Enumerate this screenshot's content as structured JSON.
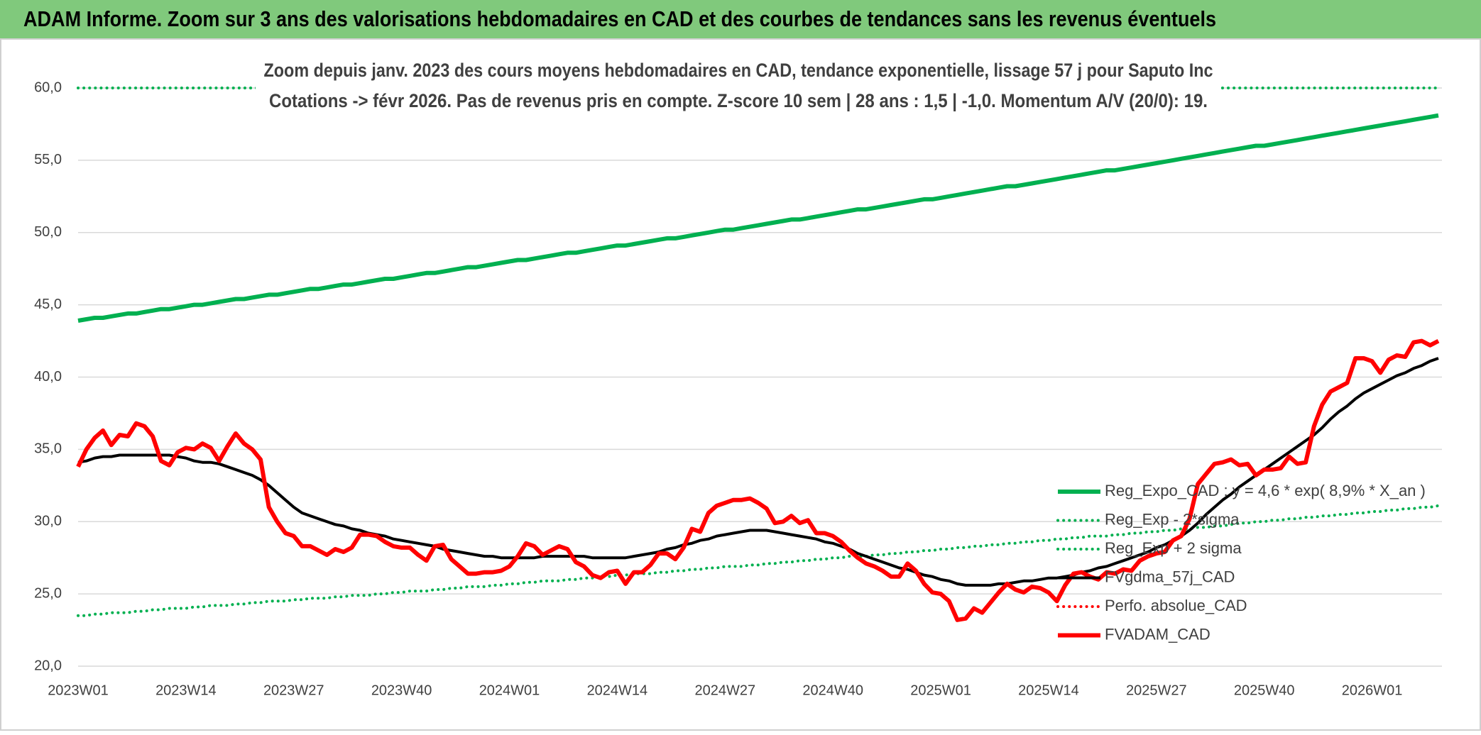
{
  "chart_data": {
    "type": "line",
    "title": "ADAM Informe. Zoom sur 3 ans des valorisations hebdomadaires en CAD et des courbes de tendances sans les revenus éventuels",
    "subtitle": [
      "Zoom depuis janv. 2023 des cours moyens hebdomadaires en CAD, tendance exponentielle, lissage 57 j pour Saputo Inc",
      "Cotations -> févr 2026. Pas de revenus pris en compte. Z-score 10 sem | 28 ans : 1,5 | -1,0. Momentum A/V (20/0): 19."
    ],
    "categories": [
      "2023W01",
      null,
      null,
      null,
      null,
      null,
      null,
      null,
      null,
      null,
      null,
      null,
      null,
      "2023W14",
      null,
      null,
      null,
      null,
      null,
      null,
      null,
      null,
      null,
      null,
      null,
      null,
      "2023W27",
      null,
      null,
      null,
      null,
      null,
      null,
      null,
      null,
      null,
      null,
      null,
      null,
      "2023W40",
      null,
      null,
      null,
      null,
      null,
      null,
      null,
      null,
      null,
      null,
      null,
      null,
      "2024W01",
      null,
      null,
      null,
      null,
      null,
      null,
      null,
      null,
      null,
      null,
      null,
      null,
      "2024W14",
      null,
      null,
      null,
      null,
      null,
      null,
      null,
      null,
      null,
      null,
      null,
      null,
      "2024W27",
      null,
      null,
      null,
      null,
      null,
      null,
      null,
      null,
      null,
      null,
      null,
      null,
      "2024W40",
      null,
      null,
      null,
      null,
      null,
      null,
      null,
      null,
      null,
      null,
      null,
      null,
      "2025W01",
      null,
      null,
      null,
      null,
      null,
      null,
      null,
      null,
      null,
      null,
      null,
      null,
      "2025W14",
      null,
      null,
      null,
      null,
      null,
      null,
      null,
      null,
      null,
      null,
      null,
      null,
      "2025W27",
      null,
      null,
      null,
      null,
      null,
      null,
      null,
      null,
      null,
      null,
      null,
      null,
      "2025W40",
      null,
      null,
      null,
      null,
      null,
      null,
      null,
      null,
      null,
      null,
      null,
      null,
      "2026W01",
      null,
      null,
      null,
      null,
      null,
      null,
      null,
      null
    ],
    "ylim": [
      20,
      60
    ],
    "yticks": [
      {
        "value": 20,
        "label": "20,0"
      },
      {
        "value": 25,
        "label": "25,0"
      },
      {
        "value": 30,
        "label": "30,0"
      },
      {
        "value": 35,
        "label": "35,0"
      },
      {
        "value": 40,
        "label": "40,0"
      },
      {
        "value": 45,
        "label": "45,0"
      },
      {
        "value": 50,
        "label": "50,0"
      },
      {
        "value": 55,
        "label": "55,0"
      },
      {
        "value": 60,
        "label": "60,0"
      }
    ],
    "grid": true,
    "legend_position": "right",
    "series": [
      {
        "name": "Reg_Expo_CAD : y = 4,6 * exp( 8,9% *  X_an )",
        "color": "#00b050",
        "dotted": false,
        "values": [
          43.9,
          44.0,
          44.1,
          44.1,
          44.2,
          44.3,
          44.4,
          44.4,
          44.5,
          44.6,
          44.7,
          44.7,
          44.8,
          44.9,
          45.0,
          45.0,
          45.1,
          45.2,
          45.3,
          45.4,
          45.4,
          45.5,
          45.6,
          45.7,
          45.7,
          45.8,
          45.9,
          46.0,
          46.1,
          46.1,
          46.2,
          46.3,
          46.4,
          46.4,
          46.5,
          46.6,
          46.7,
          46.8,
          46.8,
          46.9,
          47.0,
          47.1,
          47.2,
          47.2,
          47.3,
          47.4,
          47.5,
          47.6,
          47.6,
          47.7,
          47.8,
          47.9,
          48.0,
          48.1,
          48.1,
          48.2,
          48.3,
          48.4,
          48.5,
          48.6,
          48.6,
          48.7,
          48.8,
          48.9,
          49.0,
          49.1,
          49.1,
          49.2,
          49.3,
          49.4,
          49.5,
          49.6,
          49.6,
          49.7,
          49.8,
          49.9,
          50.0,
          50.1,
          50.2,
          50.2,
          50.3,
          50.4,
          50.5,
          50.6,
          50.7,
          50.8,
          50.9,
          50.9,
          51.0,
          51.1,
          51.2,
          51.3,
          51.4,
          51.5,
          51.6,
          51.6,
          51.7,
          51.8,
          51.9,
          52.0,
          52.1,
          52.2,
          52.3,
          52.3,
          52.4,
          52.5,
          52.6,
          52.7,
          52.8,
          52.9,
          53.0,
          53.1,
          53.2,
          53.2,
          53.3,
          53.4,
          53.5,
          53.6,
          53.7,
          53.8,
          53.9,
          54.0,
          54.1,
          54.2,
          54.3,
          54.3,
          54.4,
          54.5,
          54.6,
          54.7,
          54.8,
          54.9,
          55.0,
          55.1,
          55.2,
          55.3,
          55.4,
          55.5,
          55.6,
          55.7,
          55.8,
          55.9,
          56.0,
          56.0,
          56.1,
          56.2,
          56.3,
          56.4,
          56.5,
          56.6,
          56.7,
          56.8,
          56.9,
          57.0,
          57.1,
          57.2,
          57.3,
          57.4,
          57.5,
          57.6,
          57.7,
          57.8,
          57.9,
          58.0,
          58.1
        ]
      },
      {
        "name": "Reg_Exp - 2*sigma",
        "color": "#00b050",
        "dotted": true,
        "values": [
          23.5,
          23.5,
          23.6,
          23.6,
          23.7,
          23.7,
          23.7,
          23.8,
          23.8,
          23.9,
          23.9,
          24.0,
          24.0,
          24.0,
          24.1,
          24.1,
          24.2,
          24.2,
          24.2,
          24.3,
          24.3,
          24.4,
          24.4,
          24.5,
          24.5,
          24.5,
          24.6,
          24.6,
          24.7,
          24.7,
          24.7,
          24.8,
          24.8,
          24.9,
          24.9,
          24.9,
          25.0,
          25.0,
          25.1,
          25.1,
          25.2,
          25.2,
          25.2,
          25.3,
          25.3,
          25.4,
          25.4,
          25.5,
          25.5,
          25.5,
          25.6,
          25.6,
          25.7,
          25.7,
          25.8,
          25.8,
          25.9,
          25.9,
          25.9,
          26.0,
          26.0,
          26.1,
          26.1,
          26.2,
          26.2,
          26.3,
          26.3,
          26.4,
          26.4,
          26.4,
          26.5,
          26.5,
          26.6,
          26.6,
          26.7,
          26.7,
          26.8,
          26.8,
          26.9,
          26.9,
          26.9,
          27.0,
          27.0,
          27.1,
          27.1,
          27.2,
          27.2,
          27.3,
          27.3,
          27.4,
          27.4,
          27.5,
          27.5,
          27.6,
          27.6,
          27.6,
          27.7,
          27.7,
          27.8,
          27.8,
          27.9,
          27.9,
          28.0,
          28.0,
          28.1,
          28.1,
          28.2,
          28.2,
          28.3,
          28.3,
          28.4,
          28.4,
          28.5,
          28.5,
          28.6,
          28.6,
          28.7,
          28.7,
          28.8,
          28.8,
          28.9,
          28.9,
          29.0,
          29.0,
          29.0,
          29.1,
          29.1,
          29.2,
          29.2,
          29.3,
          29.3,
          29.4,
          29.4,
          29.5,
          29.5,
          29.6,
          29.6,
          29.7,
          29.7,
          29.8,
          29.9,
          29.9,
          30.0,
          30.0,
          30.1,
          30.1,
          30.2,
          30.2,
          30.3,
          30.3,
          30.4,
          30.4,
          30.5,
          30.5,
          30.6,
          30.6,
          30.7,
          30.7,
          30.8,
          30.8,
          30.9,
          30.9,
          31.0,
          31.0,
          31.1
        ]
      },
      {
        "name": "Reg_Exp + 2 sigma",
        "color": "#00b050",
        "dotted": true,
        "values": [
          60,
          60,
          60,
          60,
          60,
          60,
          60,
          60,
          60,
          60,
          60,
          60,
          60,
          60,
          60,
          60,
          60,
          60,
          60,
          60,
          60,
          60,
          60,
          60,
          60,
          60,
          60,
          60,
          60,
          60,
          60,
          60,
          60,
          60,
          60,
          60,
          60,
          60,
          60,
          60,
          60,
          60,
          60,
          60,
          60,
          60,
          60,
          60,
          60,
          60,
          60,
          60,
          60,
          60,
          60,
          60,
          60,
          60,
          60,
          60,
          60,
          60,
          60,
          60,
          60,
          60,
          60,
          60,
          60,
          60,
          60,
          60,
          60,
          60,
          60,
          60,
          60,
          60,
          60,
          60,
          60,
          60,
          60,
          60,
          60,
          60,
          60,
          60,
          60,
          60,
          60,
          60,
          60,
          60,
          60,
          60,
          60,
          60,
          60,
          60,
          60,
          60,
          60,
          60,
          60,
          60,
          60,
          60,
          60,
          60,
          60,
          60,
          60,
          60,
          60,
          60,
          60,
          60,
          60,
          60,
          60,
          60,
          60,
          60,
          60,
          60,
          60,
          60,
          60,
          60,
          60,
          60,
          60,
          60,
          60,
          60,
          60,
          60,
          60,
          60,
          60,
          60,
          60,
          60,
          60,
          60,
          60,
          60,
          60,
          60,
          60,
          60,
          60,
          60,
          60,
          60,
          60,
          60,
          60,
          60,
          60,
          60,
          60,
          60,
          60
        ]
      },
      {
        "name": "FVgdma_57j_CAD",
        "color": "#000000",
        "dotted": false,
        "values": [
          34.1,
          34.2,
          34.4,
          34.5,
          34.5,
          34.6,
          34.6,
          34.6,
          34.6,
          34.6,
          34.6,
          34.6,
          34.5,
          34.4,
          34.2,
          34.1,
          34.1,
          34.0,
          33.8,
          33.6,
          33.4,
          33.2,
          32.9,
          32.5,
          32.0,
          31.5,
          31.0,
          30.6,
          30.4,
          30.2,
          30.0,
          29.8,
          29.7,
          29.5,
          29.4,
          29.2,
          29.1,
          29.0,
          28.8,
          28.7,
          28.6,
          28.5,
          28.4,
          28.3,
          28.1,
          28.0,
          27.9,
          27.8,
          27.7,
          27.6,
          27.6,
          27.5,
          27.5,
          27.5,
          27.5,
          27.5,
          27.6,
          27.6,
          27.6,
          27.6,
          27.6,
          27.6,
          27.5,
          27.5,
          27.5,
          27.5,
          27.5,
          27.6,
          27.7,
          27.8,
          27.9,
          28.1,
          28.2,
          28.4,
          28.5,
          28.7,
          28.8,
          29.0,
          29.1,
          29.2,
          29.3,
          29.4,
          29.4,
          29.4,
          29.3,
          29.2,
          29.1,
          29.0,
          28.9,
          28.8,
          28.6,
          28.5,
          28.3,
          28.1,
          27.8,
          27.6,
          27.4,
          27.2,
          27.0,
          26.8,
          26.7,
          26.5,
          26.3,
          26.2,
          26.0,
          25.9,
          25.7,
          25.6,
          25.6,
          25.6,
          25.6,
          25.7,
          25.7,
          25.8,
          25.9,
          25.9,
          26.0,
          26.1,
          26.1,
          26.2,
          26.3,
          26.5,
          26.6,
          26.8,
          26.9,
          27.1,
          27.3,
          27.5,
          27.7,
          27.9,
          28.2,
          28.4,
          28.7,
          29.0,
          29.4,
          29.9,
          30.5,
          31.0,
          31.5,
          31.9,
          32.4,
          32.8,
          33.2,
          33.6,
          34.0,
          34.4,
          34.8,
          35.2,
          35.6,
          36.0,
          36.5,
          37.1,
          37.6,
          38.0,
          38.5,
          38.9,
          39.2,
          39.5,
          39.8,
          40.1,
          40.3,
          40.6,
          40.8,
          41.1,
          41.3
        ]
      },
      {
        "name": "Perfo. absolue_CAD",
        "color": "#ff0000",
        "dotted": true,
        "values": [
          null,
          null,
          null,
          null,
          null,
          null,
          null,
          null,
          null,
          null,
          null,
          null,
          null,
          null,
          null,
          null,
          null,
          null,
          null,
          null,
          null,
          null,
          null,
          null,
          null,
          null,
          null,
          null,
          null,
          null,
          null,
          null,
          null,
          null,
          null,
          null,
          null,
          null,
          null,
          null,
          null,
          null,
          null,
          null,
          null,
          null,
          null,
          null,
          null,
          null,
          null,
          null,
          null,
          null,
          null,
          null,
          null,
          null,
          null,
          null,
          null,
          null,
          null,
          null,
          null,
          null,
          null,
          null,
          null,
          null,
          null,
          null,
          null,
          null,
          null,
          null,
          null,
          null,
          null,
          null,
          null,
          null,
          null,
          null,
          null,
          null,
          null,
          null,
          null,
          null,
          null,
          null,
          null,
          null,
          null,
          null,
          null,
          null,
          null,
          null,
          null,
          null,
          null,
          null,
          null,
          null,
          null,
          null,
          null,
          null,
          null,
          null,
          null,
          null,
          null,
          null,
          null,
          null,
          null,
          null,
          null,
          null,
          null,
          null,
          null,
          null,
          null,
          null,
          null,
          null,
          null,
          null,
          null,
          null,
          null,
          null,
          null,
          null,
          null,
          null,
          null,
          null,
          null,
          null,
          null,
          null,
          null,
          null,
          null,
          null,
          null,
          null,
          null,
          null,
          null,
          null,
          null,
          null,
          null,
          null,
          null,
          null,
          null,
          null,
          null
        ]
      },
      {
        "name": "FVADAM_CAD",
        "color": "#ff0000",
        "dotted": false,
        "values": [
          33.8,
          35.0,
          35.8,
          36.3,
          35.3,
          36.0,
          35.9,
          36.8,
          36.6,
          35.9,
          34.2,
          33.9,
          34.8,
          35.1,
          35.0,
          35.4,
          35.1,
          34.2,
          35.2,
          36.1,
          35.4,
          35.0,
          34.3,
          31.0,
          30.0,
          29.2,
          29.0,
          28.3,
          28.3,
          28.0,
          27.7,
          28.1,
          27.9,
          28.2,
          29.1,
          29.1,
          29.0,
          28.6,
          28.3,
          28.2,
          28.2,
          27.7,
          27.3,
          28.3,
          28.4,
          27.4,
          26.9,
          26.4,
          26.4,
          26.5,
          26.5,
          26.6,
          26.9,
          27.6,
          28.5,
          28.3,
          27.7,
          28.0,
          28.3,
          28.1,
          27.2,
          26.9,
          26.3,
          26.1,
          26.5,
          26.6,
          25.7,
          26.5,
          26.5,
          27.0,
          27.8,
          27.8,
          27.4,
          28.2,
          29.5,
          29.3,
          30.6,
          31.1,
          31.3,
          31.5,
          31.5,
          31.6,
          31.3,
          30.9,
          29.9,
          30.0,
          30.4,
          29.9,
          30.1,
          29.2,
          29.2,
          29.0,
          28.6,
          28.0,
          27.5,
          27.1,
          26.9,
          26.6,
          26.2,
          26.2,
          27.1,
          26.6,
          25.7,
          25.1,
          25.0,
          24.5,
          23.2,
          23.3,
          24.0,
          23.7,
          24.4,
          25.1,
          25.7,
          25.3,
          25.1,
          25.5,
          25.4,
          25.1,
          24.5,
          25.6,
          26.4,
          26.5,
          26.2,
          26.0,
          26.5,
          26.4,
          26.7,
          26.6,
          27.3,
          27.6,
          27.8,
          27.9,
          28.7,
          29.0,
          30.2,
          32.6,
          33.3,
          34.0,
          34.1,
          34.3,
          33.9,
          34.0,
          33.2,
          33.6,
          33.6,
          33.7,
          34.5,
          34.0,
          34.1,
          36.6,
          38.1,
          39.0,
          39.3,
          39.6,
          41.3,
          41.3,
          41.1,
          40.3,
          41.2,
          41.5,
          41.4,
          42.4,
          42.5,
          42.2,
          42.5
        ]
      }
    ]
  }
}
